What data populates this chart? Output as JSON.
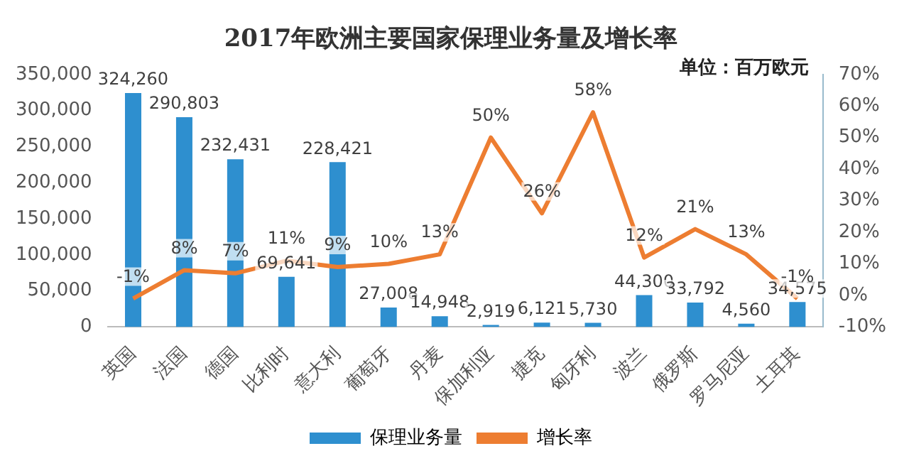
{
  "chart_data": {
    "type": "bar",
    "title": "2017年欧洲主要国家保理业务量及增长率",
    "annotations": [
      "单位：百万欧元"
    ],
    "categories": [
      "英国",
      "法国",
      "德国",
      "比利时",
      "意大利",
      "葡萄牙",
      "丹麦",
      "保加利亚",
      "捷克",
      "匈牙利",
      "波兰",
      "俄罗斯",
      "罗马尼亚",
      "土耳其"
    ],
    "series": [
      {
        "name": "保理业务量",
        "color": "#2e8fcf",
        "values": [
          324260,
          290803,
          232431,
          69641,
          228421,
          27008,
          14948,
          2919,
          6121,
          5730,
          44300,
          33792,
          4560,
          34575
        ],
        "value_labels": [
          "324,260",
          "290,803",
          "232,431",
          "69,641",
          "228,421",
          "27,008",
          "14,948",
          "2,919",
          "6,121",
          "5,730",
          "44,300",
          "33,792",
          "4,560",
          "34,575"
        ]
      },
      {
        "name": "增长率",
        "type": "line",
        "axis": "y2",
        "color": "#ed7d31",
        "values": [
          -1,
          8,
          7,
          11,
          9,
          10,
          13,
          50,
          26,
          58,
          12,
          21,
          13,
          -1
        ],
        "value_labels": [
          "-1%",
          "8%",
          "7%",
          "11%",
          "9%",
          "10%",
          "13%",
          "50%",
          "26%",
          "58%",
          "12%",
          "21%",
          "13%",
          "-1%"
        ]
      }
    ],
    "ylim": [
      0,
      350000
    ],
    "yticks": [
      0,
      {
        "value": 50000,
        "label": "50,000"
      },
      {
        "value": 100000,
        "label": "100,000"
      },
      {
        "value": 150000,
        "label": "150,000"
      },
      {
        "value": 200000,
        "label": "200,000"
      },
      {
        "value": 250000,
        "label": "250,000"
      },
      {
        "value": 300000,
        "label": "300,000"
      },
      {
        "value": 350000,
        "label": "350,000"
      }
    ],
    "y2lim": [
      -10,
      70
    ],
    "y2ticks": [
      {
        "value": -10,
        "label": "-10%"
      },
      {
        "value": 0,
        "label": "0%"
      },
      {
        "value": 10,
        "label": "10%"
      },
      {
        "value": 20,
        "label": "20%"
      },
      {
        "value": 30,
        "label": "30%"
      },
      {
        "value": 40,
        "label": "40%"
      },
      {
        "value": 50,
        "label": "50%"
      },
      {
        "value": 60,
        "label": "60%"
      },
      {
        "value": 70,
        "label": "70%"
      }
    ],
    "legend": "bottom",
    "marker": "none",
    "line_style": "solid"
  }
}
